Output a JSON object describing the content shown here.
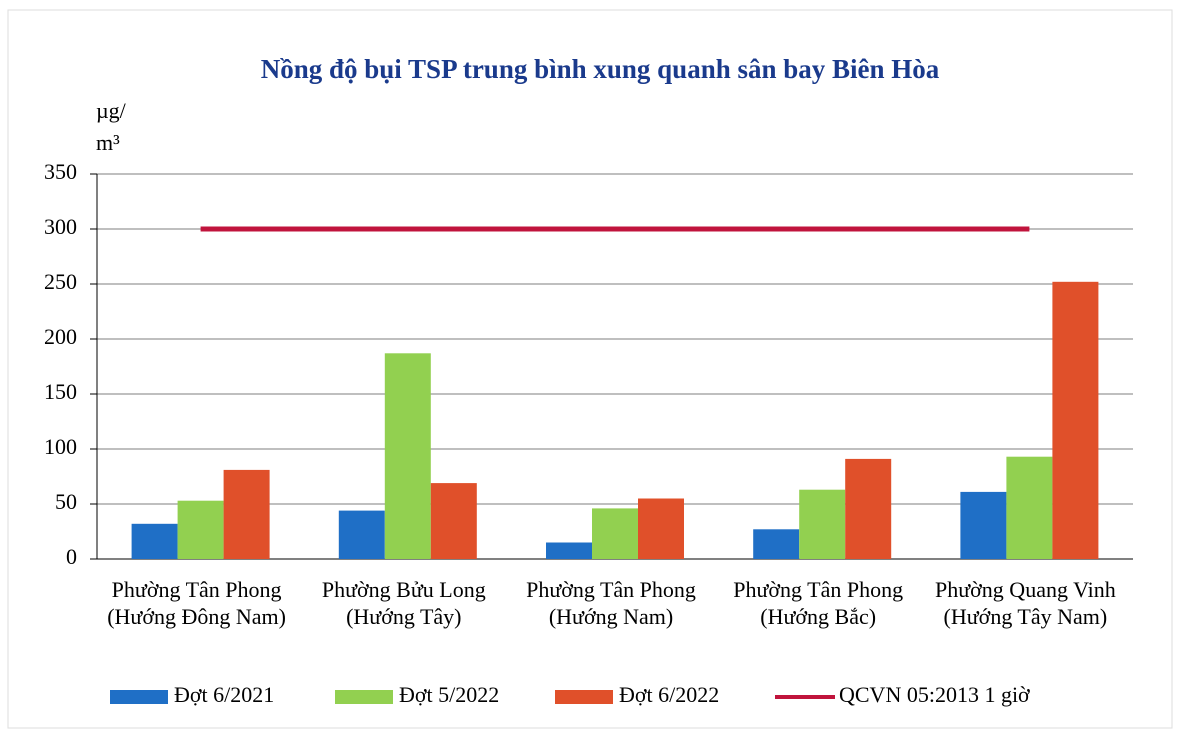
{
  "chart_data": {
    "type": "bar",
    "title": "Nồng độ bụi TSP trung bình xung quanh sân bay Biên Hòa",
    "y_label": [
      "µg/",
      "m³"
    ],
    "categories": [
      "Phường Tân Phong (Hướng Đông Nam)",
      "Phường Bửu Long (Hướng Tây)",
      "Phường Tân Phong (Hướng Nam)",
      "Phường Tân Phong (Hướng Bắc)",
      "Phường Quang Vinh (Hướng Tây Nam)"
    ],
    "series": [
      {
        "name": "Đợt 6/2021",
        "color": "#1f6fc6",
        "values": [
          32,
          44,
          15,
          27,
          61
        ]
      },
      {
        "name": "Đợt 5/2022",
        "color": "#92d050",
        "values": [
          53,
          187,
          46,
          63,
          93
        ]
      },
      {
        "name": "Đợt 6/2022",
        "color": "#e0502a",
        "values": [
          81,
          69,
          55,
          91,
          252
        ]
      },
      {
        "name": "QCVN 05:2013 1 giờ",
        "color": "#c0143c",
        "type": "line",
        "values": [
          300,
          300,
          300,
          300,
          300
        ]
      }
    ],
    "ylim": [
      0,
      350
    ],
    "yticks": [
      0,
      50,
      100,
      150,
      200,
      250,
      300,
      350
    ],
    "grid": true
  }
}
